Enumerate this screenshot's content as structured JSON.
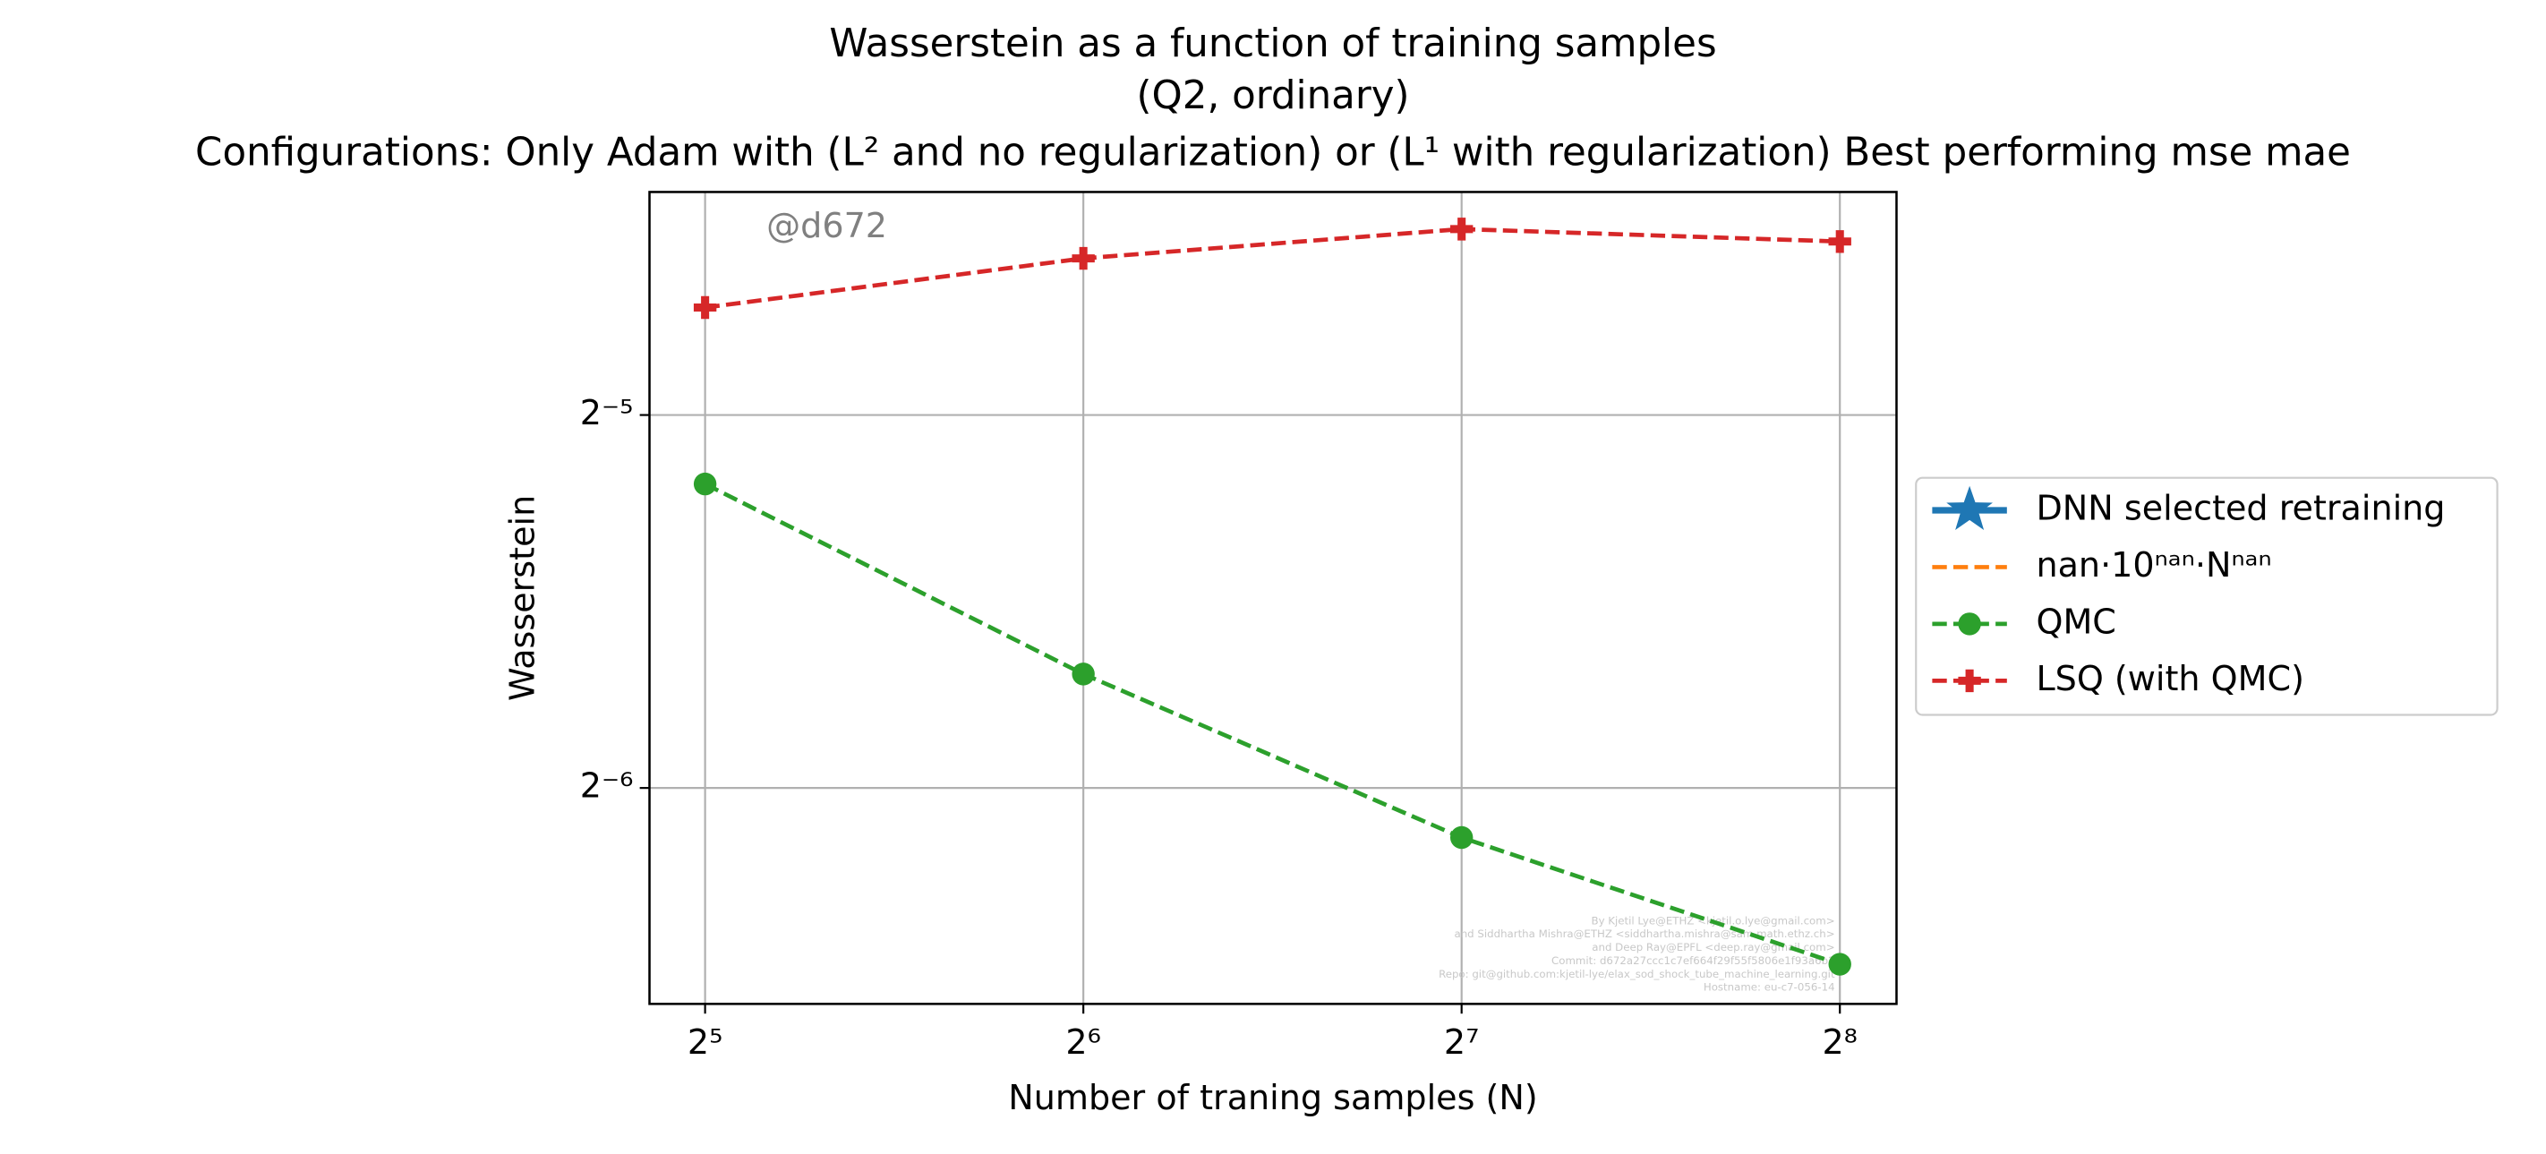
{
  "chart_data": {
    "type": "line",
    "title": [
      "Wasserstein as a function of training samples",
      "(Q2, ordinary)",
      "Configurations: Only Adam with (L² and no regularization) or (L¹ with regularization) Best performing mse mae"
    ],
    "xlabel": "Number of traning samples (N)",
    "ylabel": "Wasserstein",
    "x": [
      32,
      64,
      128,
      256
    ],
    "series": [
      {
        "name": "DNN selected retraining",
        "color": "#1f77b4",
        "marker": "star",
        "linestyle": "solid",
        "values": [
          null,
          null,
          null,
          null
        ]
      },
      {
        "name": "nan·10ⁿᵃⁿ·Nⁿᵃⁿ",
        "color": "#ff7f0e",
        "marker": "none",
        "linestyle": "dashed",
        "values": [
          null,
          null,
          null,
          null
        ]
      },
      {
        "name": "QMC",
        "color": "#2ca02c",
        "marker": "circle",
        "linestyle": "dashed",
        "values": [
          0.02749,
          0.01931,
          0.01425,
          0.01126
        ]
      },
      {
        "name": "LSQ (with QMC)",
        "color": "#d62728",
        "marker": "plus",
        "linestyle": "dashed",
        "values": [
          0.03816,
          0.04181,
          0.04415,
          0.04314
        ]
      }
    ],
    "xscale": "log2",
    "yscale": "log2",
    "xlim": [
      28.9,
      284
    ],
    "ylim": [
      0.01046,
      0.0473
    ],
    "xticks": [
      {
        "value": 32,
        "label": "2⁵"
      },
      {
        "value": 64,
        "label": "2⁶"
      },
      {
        "value": 128,
        "label": "2⁷"
      },
      {
        "value": 256,
        "label": "2⁸"
      }
    ],
    "yticks": [
      {
        "value": 0.015625,
        "label": "2⁻⁶"
      },
      {
        "value": 0.03125,
        "label": "2⁻⁵"
      }
    ],
    "grid": true,
    "legend": "outside right",
    "annotations": [
      "@d672"
    ],
    "watermark": [
      "By Kjetil Lye@ETHZ <kjetil.o.lye@gmail.com>",
      "and Siddhartha Mishra@ETHZ <siddhartha.mishra@sam.math.ethz.ch>",
      "and Deep Ray@EPFL <deep.ray@gmail.com>",
      "Commit: d672a27ccc1c7ef664f29f55f5806e1f93a6b2",
      "Repo: git@github.com:kjetil-lye/elax_sod_shock_tube_machine_learning.git",
      "Hostname: eu-c7-056-14"
    ]
  }
}
